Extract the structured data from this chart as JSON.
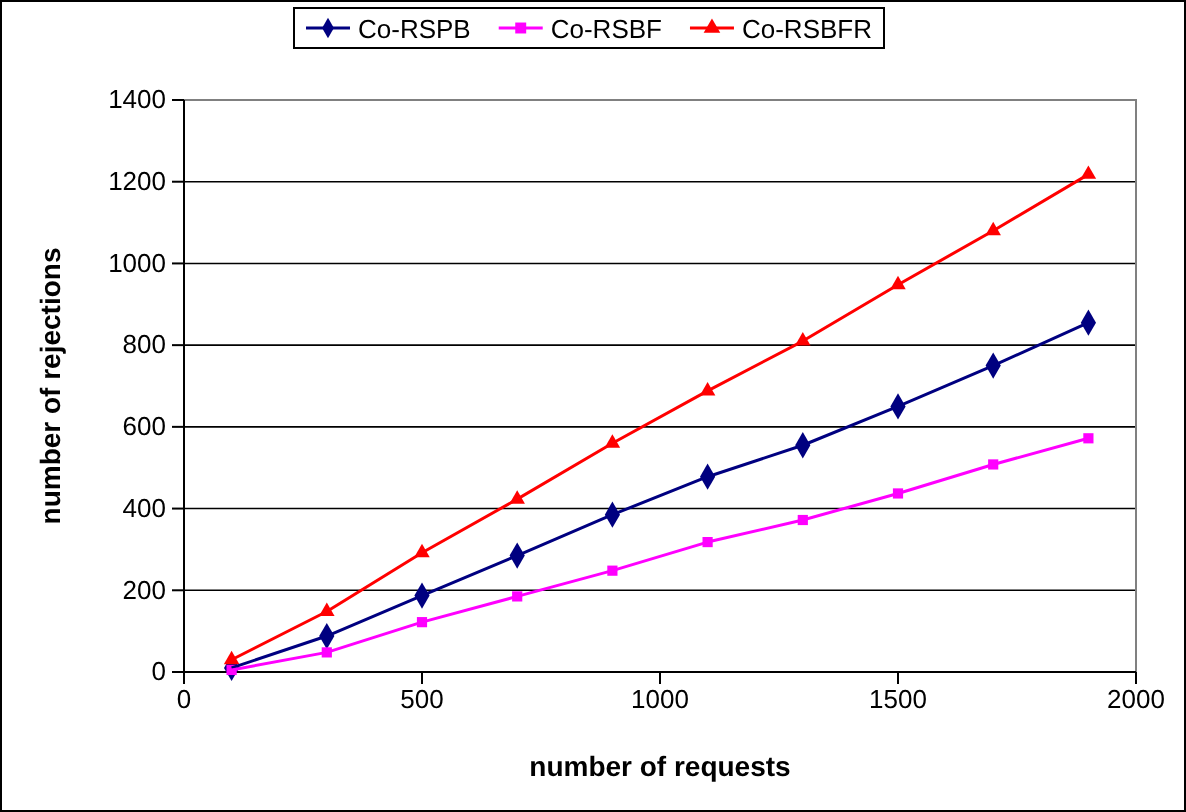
{
  "chart_data": {
    "type": "line",
    "xlabel": "number of requests",
    "ylabel": "number of rejections",
    "x": [
      100,
      300,
      500,
      700,
      900,
      1100,
      1300,
      1500,
      1700,
      1900
    ],
    "series": [
      {
        "name": "Co-RSPB",
        "color": "#000080",
        "marker": "diamond",
        "values": [
          10,
          88,
          187,
          285,
          385,
          478,
          555,
          650,
          750,
          855
        ]
      },
      {
        "name": "Co-RSBF",
        "color": "#ff00ff",
        "marker": "square",
        "values": [
          5,
          48,
          122,
          185,
          248,
          318,
          372,
          437,
          508,
          572
        ]
      },
      {
        "name": "Co-RSBFR",
        "color": "#ff0000",
        "marker": "triangle",
        "values": [
          30,
          148,
          292,
          423,
          560,
          688,
          810,
          948,
          1080,
          1218
        ]
      }
    ],
    "xlim": [
      0,
      2000
    ],
    "xticks": [
      0,
      500,
      1000,
      1500,
      2000
    ],
    "ylim": [
      0,
      1400
    ],
    "yticks": [
      0,
      200,
      400,
      600,
      800,
      1000,
      1200,
      1400
    ],
    "grid": "y",
    "legend": "top",
    "line_style": "solid"
  }
}
